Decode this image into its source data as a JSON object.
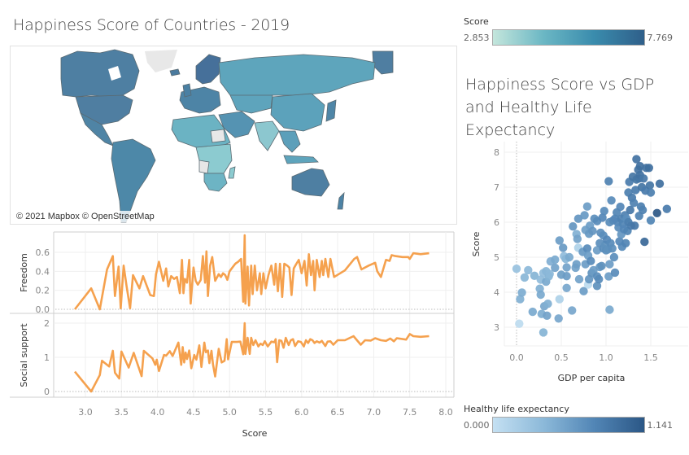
{
  "map": {
    "title": "Happiness Score of Countries - 2019",
    "credit": "© 2021 Mapbox © OpenStreetMap"
  },
  "score_legend": {
    "label": "Score",
    "min": "2.853",
    "max": "7.769",
    "colors": [
      "#c4e6dc",
      "#6bb7c4",
      "#3a8cad",
      "#2f5f8a"
    ]
  },
  "hle_legend": {
    "label": "Healthy life expectancy",
    "min": "0.000",
    "max": "1.141",
    "colors": [
      "#c4e0f2",
      "#8cb9d9",
      "#5286b6",
      "#2b5786"
    ]
  },
  "scatter": {
    "title_lines": [
      "Happiness Score vs GDP",
      "and Healthy Life",
      "Expectancy"
    ]
  },
  "chart_data": [
    {
      "type": "line",
      "name": "freedom-vs-score",
      "xlabel": "Score",
      "ylabel": "Freedom",
      "xlim": [
        2.6,
        8.0
      ],
      "ylim": [
        -0.03,
        0.8
      ],
      "xticks": [
        "3.0",
        "3.5",
        "4.0",
        "4.5",
        "5.0",
        "5.5",
        "6.0",
        "6.5",
        "7.0",
        "7.5",
        "8.0"
      ],
      "yticks": [
        "0.0",
        "0.2",
        "0.4",
        "0.6"
      ],
      "color": "#f5a14e",
      "x": [
        2.853,
        3.08,
        3.2,
        3.3,
        3.38,
        3.41,
        3.46,
        3.49,
        3.53,
        3.57,
        3.62,
        3.66,
        3.75,
        3.8,
        3.9,
        3.95,
        3.98,
        4.02,
        4.08,
        4.12,
        4.15,
        4.19,
        4.23,
        4.27,
        4.31,
        4.34,
        4.36,
        4.38,
        4.41,
        4.44,
        4.46,
        4.5,
        4.53,
        4.56,
        4.6,
        4.63,
        4.66,
        4.68,
        4.7,
        4.73,
        4.76,
        4.8,
        4.85,
        4.88,
        4.91,
        4.94,
        4.97,
        5.0,
        5.04,
        5.08,
        5.12,
        5.16,
        5.19,
        5.21,
        5.22,
        5.25,
        5.27,
        5.3,
        5.32,
        5.35,
        5.38,
        5.42,
        5.44,
        5.47,
        5.5,
        5.54,
        5.58,
        5.62,
        5.64,
        5.67,
        5.7,
        5.73,
        5.76,
        5.8,
        5.83,
        5.86,
        5.89,
        5.92,
        5.96,
        6.0,
        6.04,
        6.07,
        6.1,
        6.13,
        6.16,
        6.18,
        6.21,
        6.25,
        6.28,
        6.3,
        6.33,
        6.37,
        6.4,
        6.45,
        6.6,
        6.73,
        6.77,
        6.83,
        6.93,
        7.02,
        7.05,
        7.1,
        7.17,
        7.22,
        7.25,
        7.3,
        7.4,
        7.48,
        7.5,
        7.55,
        7.65,
        7.769
      ],
      "y": [
        0.0,
        0.22,
        0.0,
        0.42,
        0.56,
        0.14,
        0.45,
        0.01,
        0.46,
        0.25,
        0.01,
        0.36,
        0.22,
        0.35,
        0.15,
        0.14,
        0.37,
        0.5,
        0.3,
        0.43,
        0.24,
        0.35,
        0.32,
        0.34,
        0.17,
        0.52,
        0.17,
        0.32,
        0.28,
        0.52,
        0.06,
        0.44,
        0.3,
        0.26,
        0.31,
        0.56,
        0.28,
        0.61,
        0.14,
        0.46,
        0.55,
        0.3,
        0.37,
        0.34,
        0.38,
        0.36,
        0.31,
        0.4,
        0.44,
        0.48,
        0.5,
        0.53,
        0.08,
        0.78,
        0.06,
        0.45,
        0.04,
        0.46,
        0.16,
        0.46,
        0.2,
        0.38,
        0.16,
        0.38,
        0.22,
        0.36,
        0.46,
        0.26,
        0.48,
        0.19,
        0.48,
        0.13,
        0.48,
        0.46,
        0.44,
        0.15,
        0.43,
        0.47,
        0.52,
        0.38,
        0.51,
        0.25,
        0.58,
        0.36,
        0.51,
        0.2,
        0.52,
        0.34,
        0.51,
        0.36,
        0.53,
        0.34,
        0.53,
        0.34,
        0.41,
        0.53,
        0.55,
        0.42,
        0.46,
        0.49,
        0.4,
        0.34,
        0.52,
        0.51,
        0.57,
        0.56,
        0.55,
        0.55,
        0.53,
        0.59,
        0.58,
        0.59
      ]
    },
    {
      "type": "line",
      "name": "social-support-vs-score",
      "xlabel": "Score",
      "ylabel": "Social support",
      "xlim": [
        2.6,
        8.0
      ],
      "ylim": [
        -0.05,
        2.2
      ],
      "xticks": [
        "3.0",
        "3.5",
        "4.0",
        "4.5",
        "5.0",
        "5.5",
        "6.0",
        "6.5",
        "7.0",
        "7.5",
        "8.0"
      ],
      "yticks": [
        "0",
        "1",
        "2"
      ],
      "color": "#f5a14e",
      "x": [
        2.853,
        3.08,
        3.2,
        3.23,
        3.33,
        3.38,
        3.41,
        3.47,
        3.5,
        3.6,
        3.67,
        3.78,
        3.81,
        3.93,
        3.97,
        3.99,
        4.02,
        4.09,
        4.12,
        4.17,
        4.21,
        4.29,
        4.33,
        4.35,
        4.37,
        4.39,
        4.41,
        4.44,
        4.47,
        4.51,
        4.54,
        4.58,
        4.61,
        4.65,
        4.67,
        4.7,
        4.72,
        4.75,
        4.77,
        4.8,
        4.85,
        4.89,
        4.93,
        4.96,
        4.98,
        5.03,
        5.06,
        5.1,
        5.15,
        5.19,
        5.21,
        5.22,
        5.25,
        5.28,
        5.3,
        5.33,
        5.36,
        5.4,
        5.43,
        5.46,
        5.49,
        5.53,
        5.58,
        5.62,
        5.64,
        5.66,
        5.69,
        5.72,
        5.75,
        5.78,
        5.82,
        5.85,
        5.88,
        5.91,
        5.95,
        5.99,
        6.03,
        6.06,
        6.09,
        6.12,
        6.15,
        6.18,
        6.21,
        6.25,
        6.28,
        6.33,
        6.36,
        6.4,
        6.44,
        6.5,
        6.6,
        6.72,
        6.82,
        6.88,
        6.96,
        7.02,
        7.1,
        7.17,
        7.23,
        7.28,
        7.32,
        7.45,
        7.5,
        7.55,
        7.65,
        7.769
      ],
      "y": [
        0.58,
        0.0,
        0.48,
        0.9,
        0.73,
        1.19,
        0.55,
        0.38,
        1.17,
        0.7,
        1.13,
        0.45,
        1.19,
        0.97,
        0.78,
        0.93,
        0.6,
        1.07,
        1.05,
        1.18,
        1.04,
        1.43,
        0.78,
        1.3,
        0.85,
        1.14,
        0.95,
        1.2,
        0.68,
        1.07,
        0.93,
        1.35,
        0.72,
        1.43,
        1.15,
        1.2,
        0.83,
        1.19,
        0.8,
        0.44,
        1.25,
        0.85,
        0.9,
        1.53,
        0.94,
        1.45,
        1.45,
        1.45,
        1.46,
        1.09,
        2.0,
        1.1,
        1.57,
        1.1,
        1.57,
        1.36,
        1.5,
        1.32,
        1.4,
        1.36,
        1.47,
        1.32,
        1.46,
        1.44,
        1.53,
        0.86,
        1.5,
        1.48,
        1.28,
        1.57,
        1.36,
        1.5,
        1.53,
        1.33,
        1.47,
        1.45,
        1.32,
        1.5,
        1.42,
        1.53,
        1.5,
        1.42,
        1.47,
        1.43,
        1.48,
        1.33,
        1.46,
        1.47,
        1.37,
        1.5,
        1.5,
        1.62,
        1.37,
        1.5,
        1.49,
        1.56,
        1.5,
        1.48,
        1.55,
        1.47,
        1.56,
        1.52,
        1.68,
        1.62,
        1.6,
        1.62
      ]
    },
    {
      "type": "scatter",
      "name": "score-vs-gdp",
      "title": "Happiness Score vs GDP and Healthy Life Expectancy",
      "xlabel": "GDP per capita",
      "ylabel": "Score",
      "xlim": [
        -0.1,
        1.8
      ],
      "ylim": [
        2.5,
        8.2
      ],
      "xticks": [
        "0.0",
        "0.5",
        "1.0",
        "1.5"
      ],
      "yticks": [
        "3",
        "4",
        "5",
        "6",
        "7",
        "8"
      ],
      "color_field": "Healthy life expectancy",
      "color_range": [
        0.0,
        1.141
      ],
      "points": [
        [
          0.0,
          4.67,
          0.3
        ],
        [
          0.03,
          3.1,
          0.05
        ],
        [
          0.04,
          3.8,
          0.45
        ],
        [
          0.06,
          3.99,
          0.48
        ],
        [
          0.09,
          4.42,
          0.4
        ],
        [
          0.13,
          4.63,
          0.38
        ],
        [
          0.2,
          4.47,
          0.42
        ],
        [
          0.18,
          3.44,
          0.5
        ],
        [
          0.26,
          4.1,
          0.45
        ],
        [
          0.27,
          3.93,
          0.5
        ],
        [
          0.27,
          4.36,
          0.36
        ],
        [
          0.28,
          3.38,
          0.48
        ],
        [
          0.3,
          2.85,
          0.42
        ],
        [
          0.3,
          4.55,
          0.35
        ],
        [
          0.31,
          3.6,
          0.52
        ],
        [
          0.33,
          4.3,
          0.5
        ],
        [
          0.33,
          4.6,
          0.4
        ],
        [
          0.34,
          3.33,
          0.55
        ],
        [
          0.35,
          3.67,
          0.45
        ],
        [
          0.36,
          4.45,
          0.42
        ],
        [
          0.37,
          4.52,
          0.38
        ],
        [
          0.38,
          4.88,
          0.46
        ],
        [
          0.43,
          4.93,
          0.5
        ],
        [
          0.43,
          4.7,
          0.55
        ],
        [
          0.47,
          3.25,
          0.52
        ],
        [
          0.48,
          5.48,
          0.6
        ],
        [
          0.48,
          3.8,
          0.15
        ],
        [
          0.5,
          4.5,
          0.58
        ],
        [
          0.52,
          5.27,
          0.62
        ],
        [
          0.53,
          5.03,
          0.35
        ],
        [
          0.55,
          4.95,
          0.4
        ],
        [
          0.56,
          4.46,
          0.6
        ],
        [
          0.56,
          4.71,
          0.55
        ],
        [
          0.56,
          4.12,
          0.52
        ],
        [
          0.59,
          5.0,
          0.5
        ],
        [
          0.62,
          3.48,
          0.52
        ],
        [
          0.63,
          5.88,
          0.65
        ],
        [
          0.66,
          4.7,
          0.55
        ],
        [
          0.67,
          4.8,
          0.58
        ],
        [
          0.67,
          5.66,
          0.45
        ],
        [
          0.68,
          5.52,
          0.55
        ],
        [
          0.69,
          5.27,
          0.15
        ],
        [
          0.69,
          6.1,
          0.65
        ],
        [
          0.7,
          4.37,
          0.55
        ],
        [
          0.74,
          5.15,
          0.62
        ],
        [
          0.75,
          4.03,
          0.6
        ],
        [
          0.76,
          6.2,
          0.62
        ],
        [
          0.77,
          4.8,
          0.6
        ],
        [
          0.77,
          5.78,
          0.58
        ],
        [
          0.79,
          5.25,
          0.72
        ],
        [
          0.79,
          6.45,
          0.6
        ],
        [
          0.8,
          5.05,
          0.6
        ],
        [
          0.8,
          4.22,
          0.05
        ],
        [
          0.81,
          5.67,
          0.62
        ],
        [
          0.81,
          4.37,
          0.65
        ],
        [
          0.82,
          5.9,
          0.6
        ],
        [
          0.83,
          4.89,
          0.72
        ],
        [
          0.84,
          4.55,
          0.68
        ],
        [
          0.85,
          5.75,
          0.65
        ],
        [
          0.86,
          4.63,
          0.6
        ],
        [
          0.87,
          6.1,
          0.7
        ],
        [
          0.9,
          4.45,
          0.7
        ],
        [
          0.9,
          4.18,
          0.68
        ],
        [
          0.9,
          5.2,
          0.6
        ],
        [
          0.9,
          6.03,
          0.72
        ],
        [
          0.92,
          4.37,
          0.72
        ],
        [
          0.93,
          5.4,
          0.7
        ],
        [
          0.93,
          4.72,
          0.62
        ],
        [
          0.94,
          5.7,
          0.7
        ],
        [
          0.95,
          4.75,
          0.68
        ],
        [
          0.96,
          6.13,
          0.75
        ],
        [
          0.97,
          5.25,
          0.72
        ],
        [
          0.97,
          5.62,
          0.7
        ],
        [
          0.98,
          6.32,
          0.72
        ],
        [
          0.99,
          5.35,
          0.68
        ],
        [
          1.0,
          5.2,
          0.7
        ],
        [
          1.01,
          5.5,
          0.75
        ],
        [
          1.02,
          5.22,
          0.68
        ],
        [
          1.03,
          7.17,
          0.8
        ],
        [
          1.03,
          4.45,
          0.6
        ],
        [
          1.04,
          3.5,
          0.5
        ],
        [
          1.04,
          4.8,
          0.6
        ],
        [
          1.04,
          6.0,
          0.72
        ],
        [
          1.05,
          5.4,
          0.72
        ],
        [
          1.06,
          6.62,
          0.72
        ],
        [
          1.07,
          5.25,
          0.7
        ],
        [
          1.08,
          6.05,
          0.74
        ],
        [
          1.09,
          5.0,
          0.7
        ],
        [
          1.1,
          4.56,
          0.72
        ],
        [
          1.1,
          6.1,
          0.75
        ],
        [
          1.12,
          6.28,
          0.78
        ],
        [
          1.13,
          6.0,
          0.75
        ],
        [
          1.14,
          5.85,
          0.72
        ],
        [
          1.15,
          5.45,
          0.75
        ],
        [
          1.16,
          6.44,
          0.75
        ],
        [
          1.17,
          5.65,
          0.65
        ],
        [
          1.17,
          6.1,
          0.8
        ],
        [
          1.18,
          5.3,
          0.74
        ],
        [
          1.19,
          5.95,
          0.78
        ],
        [
          1.2,
          5.8,
          0.75
        ],
        [
          1.21,
          6.2,
          0.8
        ],
        [
          1.22,
          5.4,
          0.78
        ],
        [
          1.23,
          6.1,
          0.7
        ],
        [
          1.24,
          5.75,
          0.78
        ],
        [
          1.25,
          6.85,
          0.82
        ],
        [
          1.25,
          6.0,
          0.82
        ],
        [
          1.26,
          7.15,
          0.85
        ],
        [
          1.27,
          6.35,
          0.88
        ],
        [
          1.28,
          5.9,
          0.85
        ],
        [
          1.29,
          6.7,
          0.85
        ],
        [
          1.3,
          7.3,
          0.9
        ],
        [
          1.31,
          6.55,
          0.8
        ],
        [
          1.32,
          5.9,
          0.88
        ],
        [
          1.33,
          6.92,
          0.85
        ],
        [
          1.34,
          7.22,
          0.9
        ],
        [
          1.34,
          7.8,
          0.92
        ],
        [
          1.36,
          7.5,
          0.92
        ],
        [
          1.37,
          6.18,
          0.8
        ],
        [
          1.37,
          7.25,
          0.9
        ],
        [
          1.38,
          7.35,
          0.92
        ],
        [
          1.38,
          7.6,
          0.94
        ],
        [
          1.39,
          6.45,
          0.82
        ],
        [
          1.4,
          7.0,
          0.9
        ],
        [
          1.41,
          6.35,
          0.8
        ],
        [
          1.42,
          7.25,
          0.88
        ],
        [
          1.43,
          5.44,
          1.0
        ],
        [
          1.44,
          6.9,
          0.85
        ],
        [
          1.45,
          7.55,
          0.92
        ],
        [
          1.48,
          7.55,
          0.95
        ],
        [
          1.49,
          7.05,
          0.9
        ],
        [
          1.5,
          6.05,
          0.78
        ],
        [
          1.5,
          6.85,
          0.82
        ],
        [
          1.57,
          6.26,
          1.141
        ],
        [
          1.6,
          7.1,
          0.95
        ],
        [
          1.68,
          6.38,
          0.85
        ]
      ]
    }
  ]
}
